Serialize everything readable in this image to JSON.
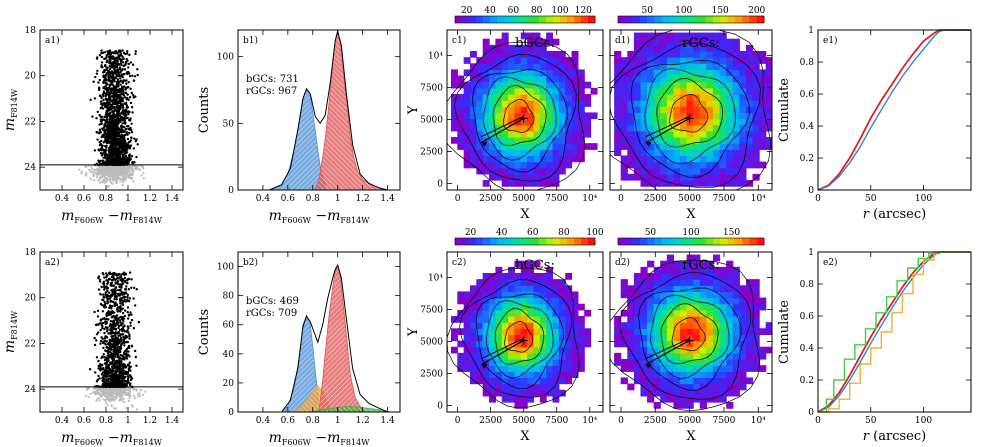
{
  "chart_data": [
    {
      "id": "a1",
      "type": "scatter",
      "panel_label": "a1)",
      "xlabel": "m_F606W−m_F814W",
      "ylabel": "m_F814W",
      "xlim": [
        0.2,
        1.5
      ],
      "ylim": [
        25,
        18
      ],
      "xticks": [
        0.4,
        0.6,
        0.8,
        1.0,
        1.2,
        1.4
      ],
      "yticks": [
        18,
        20,
        22,
        24
      ],
      "cut_line": 23.9,
      "n_bright": 1600,
      "n_faint": 650,
      "colors": {
        "bright": "#000000",
        "faint": "#bbbbbb"
      }
    },
    {
      "id": "b1",
      "type": "area",
      "panel_label": "b1)",
      "xlabel": "m_F606W−m_F814W",
      "ylabel": "Counts",
      "xlim": [
        0.2,
        1.5
      ],
      "ylim": [
        0,
        120
      ],
      "xticks": [
        0.4,
        0.6,
        0.8,
        1.0,
        1.2,
        1.4
      ],
      "yticks": [
        0,
        50,
        100
      ],
      "annotations": [
        "bGCs: 731",
        "rGCs: 967"
      ],
      "series": [
        {
          "name": "bGCs",
          "color": "#4a8fd8",
          "x": [
            0.45,
            0.5,
            0.55,
            0.6,
            0.65,
            0.7,
            0.72,
            0.75,
            0.78,
            0.8,
            0.82,
            0.84,
            0.86,
            0.88,
            0.9
          ],
          "y": [
            0,
            1,
            4,
            12,
            30,
            55,
            68,
            76,
            70,
            58,
            44,
            30,
            18,
            10,
            4
          ]
        },
        {
          "name": "rGCs",
          "color": "#e05252",
          "x": [
            0.82,
            0.85,
            0.88,
            0.9,
            0.93,
            0.96,
            0.98,
            1.0,
            1.02,
            1.05,
            1.08,
            1.1,
            1.13,
            1.16,
            1.2,
            1.25,
            1.3,
            1.35,
            1.4
          ],
          "y": [
            0,
            8,
            25,
            38,
            65,
            95,
            112,
            119,
            112,
            85,
            60,
            40,
            24,
            14,
            8,
            5,
            3,
            1,
            0
          ]
        }
      ],
      "envelope": {
        "x": [
          0.45,
          0.55,
          0.62,
          0.68,
          0.72,
          0.75,
          0.78,
          0.82,
          0.86,
          0.9,
          0.94,
          0.98,
          1.0,
          1.03,
          1.07,
          1.12,
          1.18,
          1.25,
          1.32,
          1.4
        ],
        "y": [
          0,
          4,
          16,
          45,
          68,
          76,
          72,
          55,
          50,
          56,
          80,
          112,
          119,
          108,
          72,
          34,
          12,
          5,
          2,
          0
        ]
      }
    },
    {
      "id": "c1",
      "type": "heatmap",
      "panel_label": "c1)",
      "title": "bGCs:",
      "xlabel": "X",
      "ylabel": "Y",
      "xlim": [
        -800,
        11000
      ],
      "ylim": [
        -500,
        12000
      ],
      "xticks": [
        0,
        2500,
        5000,
        7500,
        10000
      ],
      "xtick_labels": [
        "0",
        "2500",
        "5000",
        "7500",
        "10⁴"
      ],
      "yticks": [
        0,
        2500,
        5000,
        7500,
        10000
      ],
      "ytick_labels": [
        "0",
        "2500",
        "5000",
        "7500",
        "10⁴"
      ],
      "colorbar": {
        "ticks": [
          20,
          40,
          60,
          80,
          100,
          120
        ],
        "range": [
          10,
          130
        ]
      },
      "peak": [
        4600,
        5200
      ],
      "spread": [
        2500,
        2800
      ],
      "arrow_from": [
        1800,
        3200
      ],
      "arrow_to": [
        5000,
        5100
      ]
    },
    {
      "id": "d1",
      "type": "heatmap",
      "panel_label": "d1)",
      "title": "rGCs:",
      "xlabel": "X",
      "ylabel": "",
      "xlim": [
        -800,
        11000
      ],
      "ylim": [
        -500,
        12000
      ],
      "xticks": [
        0,
        2500,
        5000,
        7500,
        10000
      ],
      "xtick_labels": [
        "0",
        "2500",
        "5000",
        "7500",
        "10⁴"
      ],
      "yticks": [
        0,
        2500,
        5000,
        7500,
        10000
      ],
      "ytick_labels": [
        "",
        "",
        "",
        "",
        ""
      ],
      "colorbar": {
        "ticks": [
          50,
          100,
          150,
          200
        ],
        "range": [
          10,
          210
        ]
      },
      "peak": [
        4900,
        5400
      ],
      "spread": [
        3000,
        3200
      ],
      "arrow_from": [
        1800,
        3200
      ],
      "arrow_to": [
        5000,
        5100
      ]
    },
    {
      "id": "e1",
      "type": "line",
      "panel_label": "e1)",
      "xlabel": "r (arcsec)",
      "ylabel": "Cumulate",
      "xlim": [
        0,
        145
      ],
      "ylim": [
        0,
        1
      ],
      "xticks": [
        0,
        50,
        100
      ],
      "yticks": [
        0,
        0.2,
        0.4,
        0.6,
        0.8,
        1
      ],
      "series": [
        {
          "name": "red",
          "color": "#e02020",
          "x": [
            0,
            10,
            20,
            30,
            40,
            50,
            60,
            70,
            80,
            90,
            100,
            110,
            115,
            120,
            145
          ],
          "y": [
            0,
            0.03,
            0.1,
            0.2,
            0.32,
            0.45,
            0.56,
            0.66,
            0.76,
            0.85,
            0.93,
            0.98,
            1,
            1,
            1
          ]
        },
        {
          "name": "blue",
          "color": "#3a80d8",
          "x": [
            0,
            10,
            20,
            30,
            40,
            50,
            60,
            70,
            80,
            90,
            100,
            110,
            115,
            120,
            145
          ],
          "y": [
            0,
            0.025,
            0.085,
            0.17,
            0.27,
            0.39,
            0.5,
            0.61,
            0.71,
            0.8,
            0.88,
            0.96,
            0.99,
            1,
            1
          ]
        }
      ]
    },
    {
      "id": "a2",
      "type": "scatter",
      "panel_label": "a2)",
      "xlabel": "m_F606W−m_F814W",
      "ylabel": "m_F814W",
      "xlim": [
        0.2,
        1.5
      ],
      "ylim": [
        25,
        18
      ],
      "xticks": [
        0.4,
        0.6,
        0.8,
        1.0,
        1.2,
        1.4
      ],
      "yticks": [
        18,
        20,
        22,
        24
      ],
      "cut_line": 23.9,
      "n_bright": 1150,
      "n_faint": 350,
      "colors": {
        "bright": "#000000",
        "faint": "#bbbbbb"
      }
    },
    {
      "id": "b2",
      "type": "area",
      "panel_label": "b2)",
      "xlabel": "m_F606W−m_F814W",
      "ylabel": "Counts",
      "xlim": [
        0.2,
        1.5
      ],
      "ylim": [
        0,
        110
      ],
      "xticks": [
        0.4,
        0.6,
        0.8,
        1.0,
        1.2,
        1.4
      ],
      "yticks": [
        0,
        20,
        40,
        60,
        80,
        100
      ],
      "annotations": [
        "bGCs: 469",
        "rGCs: 709"
      ],
      "series": [
        {
          "name": "bGCs",
          "color": "#4a8fd8",
          "x": [
            0.55,
            0.6,
            0.65,
            0.7,
            0.72,
            0.75,
            0.78,
            0.8,
            0.82,
            0.84,
            0.86
          ],
          "y": [
            0,
            4,
            16,
            42,
            60,
            66,
            60,
            45,
            28,
            12,
            2
          ]
        },
        {
          "name": "orange",
          "color": "#f0a030",
          "x": [
            0.65,
            0.7,
            0.75,
            0.8,
            0.84,
            0.88,
            0.92,
            0.96
          ],
          "y": [
            0,
            3,
            8,
            14,
            18,
            14,
            6,
            0
          ]
        },
        {
          "name": "rGCs",
          "color": "#e05252",
          "x": [
            0.85,
            0.88,
            0.9,
            0.93,
            0.96,
            0.98,
            1.0,
            1.02,
            1.05,
            1.08,
            1.1,
            1.14,
            1.18,
            1.22
          ],
          "y": [
            0,
            22,
            40,
            66,
            86,
            97,
            100,
            93,
            70,
            44,
            26,
            10,
            4,
            0
          ]
        },
        {
          "name": "green",
          "color": "#40b040",
          "x": [
            0.8,
            0.9,
            1.0,
            1.1,
            1.2,
            1.3,
            1.38,
            1.42
          ],
          "y": [
            0,
            2,
            3,
            4,
            3,
            2,
            1,
            0
          ]
        }
      ],
      "envelope": {
        "x": [
          0.55,
          0.62,
          0.68,
          0.72,
          0.75,
          0.78,
          0.81,
          0.84,
          0.88,
          0.92,
          0.96,
          0.98,
          1.0,
          1.03,
          1.07,
          1.12,
          1.18,
          1.25,
          1.32,
          1.4
        ],
        "y": [
          0,
          8,
          30,
          58,
          66,
          62,
          55,
          48,
          60,
          78,
          92,
          98,
          101,
          92,
          64,
          30,
          12,
          6,
          3,
          0
        ]
      }
    },
    {
      "id": "c2",
      "type": "heatmap",
      "panel_label": "c2)",
      "title": "bGCs:",
      "xlabel": "X",
      "ylabel": "Y",
      "xlim": [
        -800,
        11000
      ],
      "ylim": [
        -500,
        12000
      ],
      "xticks": [
        0,
        2500,
        5000,
        7500,
        10000
      ],
      "xtick_labels": [
        "0",
        "2500",
        "5000",
        "7500",
        "10⁴"
      ],
      "yticks": [
        0,
        2500,
        5000,
        7500,
        10000
      ],
      "ytick_labels": [
        "0",
        "2500",
        "5000",
        "7500",
        "10⁴"
      ],
      "colorbar": {
        "ticks": [
          20,
          40,
          60,
          80,
          100
        ],
        "range": [
          10,
          100
        ]
      },
      "peak": [
        4600,
        5300
      ],
      "spread": [
        2300,
        2600
      ],
      "arrow_from": [
        1800,
        3200
      ],
      "arrow_to": [
        5000,
        5100
      ]
    },
    {
      "id": "d2",
      "type": "heatmap",
      "panel_label": "d2)",
      "title": "rGCs:",
      "xlabel": "X",
      "ylabel": "",
      "xlim": [
        -800,
        11000
      ],
      "ylim": [
        -500,
        12000
      ],
      "xticks": [
        0,
        2500,
        5000,
        7500,
        10000
      ],
      "xtick_labels": [
        "0",
        "2500",
        "5000",
        "7500",
        "10⁴"
      ],
      "yticks": [
        0,
        2500,
        5000,
        7500,
        10000
      ],
      "ytick_labels": [
        "",
        "",
        "",
        "",
        ""
      ],
      "colorbar": {
        "ticks": [
          50,
          100,
          150
        ],
        "range": [
          10,
          190
        ]
      },
      "peak": [
        4900,
        5500
      ],
      "spread": [
        2600,
        2800
      ],
      "arrow_from": [
        1800,
        3200
      ],
      "arrow_to": [
        5000,
        5100
      ]
    },
    {
      "id": "e2",
      "type": "line",
      "panel_label": "e2)",
      "xlabel": "r (arcsec)",
      "ylabel": "Cumulate",
      "xlim": [
        0,
        145
      ],
      "ylim": [
        0,
        1
      ],
      "xticks": [
        0,
        50,
        100
      ],
      "yticks": [
        0,
        0.2,
        0.4,
        0.6,
        0.8,
        1
      ],
      "series": [
        {
          "name": "red",
          "color": "#e02020",
          "x": [
            0,
            10,
            20,
            30,
            40,
            50,
            60,
            70,
            80,
            90,
            100,
            110,
            115,
            120,
            145
          ],
          "y": [
            0,
            0.04,
            0.12,
            0.23,
            0.35,
            0.47,
            0.58,
            0.68,
            0.78,
            0.87,
            0.94,
            0.99,
            1,
            1,
            1
          ]
        },
        {
          "name": "blue",
          "color": "#3a80d8",
          "x": [
            0,
            10,
            20,
            30,
            40,
            50,
            60,
            70,
            80,
            90,
            100,
            110,
            115,
            120,
            145
          ],
          "y": [
            0,
            0.03,
            0.1,
            0.2,
            0.31,
            0.43,
            0.54,
            0.65,
            0.75,
            0.84,
            0.92,
            0.98,
            1,
            1,
            1
          ]
        },
        {
          "name": "green",
          "color": "#40d040",
          "x": [
            0,
            8,
            15,
            25,
            35,
            45,
            55,
            65,
            75,
            85,
            95,
            105,
            115,
            145
          ],
          "y": [
            0,
            0.08,
            0.2,
            0.33,
            0.42,
            0.52,
            0.62,
            0.72,
            0.82,
            0.9,
            0.96,
            0.99,
            1,
            1
          ]
        },
        {
          "name": "orange",
          "color": "#f0b030",
          "x": [
            0,
            10,
            20,
            30,
            40,
            50,
            60,
            70,
            80,
            90,
            100,
            110,
            145
          ],
          "y": [
            0,
            0.02,
            0.08,
            0.18,
            0.3,
            0.4,
            0.5,
            0.62,
            0.74,
            0.86,
            0.95,
            1,
            1
          ]
        }
      ]
    }
  ]
}
